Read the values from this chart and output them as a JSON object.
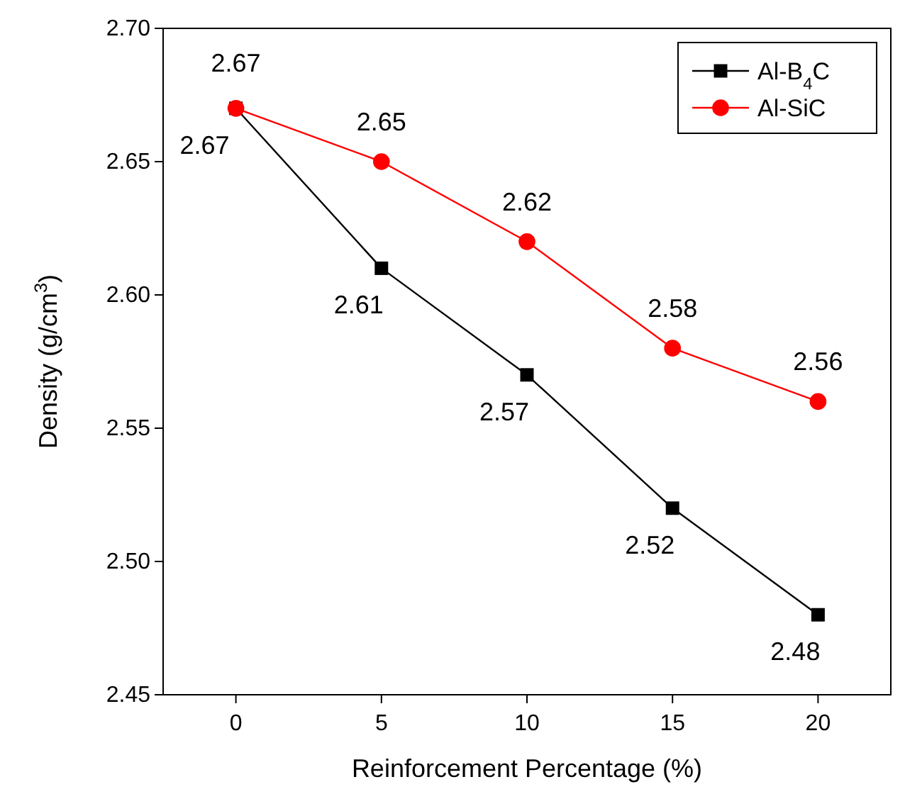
{
  "chart_data": {
    "type": "line",
    "xlabel": "Reinforcement Percentage (%)",
    "ylabel": "Density (g/cm$^{3}$)",
    "x": [
      0,
      5,
      10,
      15,
      20
    ],
    "xlim": [
      -2.5,
      22.5
    ],
    "xticks": [
      0,
      5,
      10,
      15,
      20
    ],
    "ylim": [
      2.45,
      2.7
    ],
    "yticks": [
      2.45,
      {
        "value": 2.5,
        "label": "2.50"
      },
      2.55,
      {
        "value": 2.6,
        "label": "2.60"
      },
      2.65,
      {
        "value": 2.7,
        "label": "2.70"
      }
    ],
    "series": [
      {
        "name": "Al-B$_{4}$C",
        "color": "#000000",
        "marker": "square",
        "values": [
          2.67,
          2.61,
          2.57,
          2.52,
          2.48
        ]
      },
      {
        "name": "Al-SiC",
        "color": "#ff0000",
        "marker": "circle",
        "values": [
          2.67,
          2.65,
          2.62,
          2.58,
          2.56
        ]
      }
    ],
    "data_labels": true,
    "legend": "top right",
    "grid": false,
    "line_style": "solid"
  }
}
